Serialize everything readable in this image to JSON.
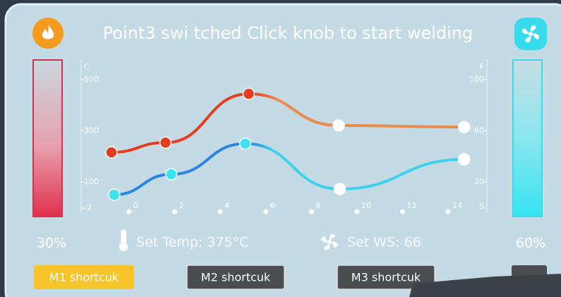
{
  "header": {
    "title": "Point3 swi tched Click knob to start welding"
  },
  "gauges": {
    "left": "30%",
    "right": "60%"
  },
  "status": {
    "set_temp": "Set Temp: 375°C",
    "set_ws": "Set WS: 66"
  },
  "buttons": [
    "M1 shortcuk",
    "M2 shortcuk",
    "M3 shortcuk"
  ],
  "chart_data": {
    "type": "line",
    "y_label": "C",
    "y2_label": "F",
    "x_label": "S",
    "xlim": [
      -2.1,
      15.7
    ],
    "xticks": [
      0,
      2,
      4,
      6,
      8,
      10,
      12,
      14
    ],
    "ylim": [
      -20,
      580
    ],
    "yticks": [
      -2,
      100,
      300,
      500
    ],
    "y2lim": [
      -4,
      116
    ],
    "y2ticks": [
      20,
      60,
      100
    ],
    "series": [
      {
        "color": "#e63d1e",
        "tail_color": "#ea8a4c",
        "x": [
          -0.77,
          1.6,
          5.25,
          9.2,
          14.7
        ],
        "values": [
          216,
          254,
          445,
          321,
          315
        ],
        "point_colors": [
          "#e63d1e",
          "#e63d1e",
          "#e63d1e",
          "#ffffff",
          "#ffffff"
        ]
      },
      {
        "color": "#2a86e0",
        "tail_color": "#3fd0ec",
        "axis": "y2",
        "x": [
          -0.65,
          1.85,
          5.1,
          9.25,
          14.7
        ],
        "values": [
          10,
          26,
          50,
          14.5,
          37.7
        ],
        "point_colors": [
          "#3fe3ef",
          "#3fe3ef",
          "#3fe3ef",
          "#ffffff",
          "#ffffff"
        ]
      }
    ]
  }
}
